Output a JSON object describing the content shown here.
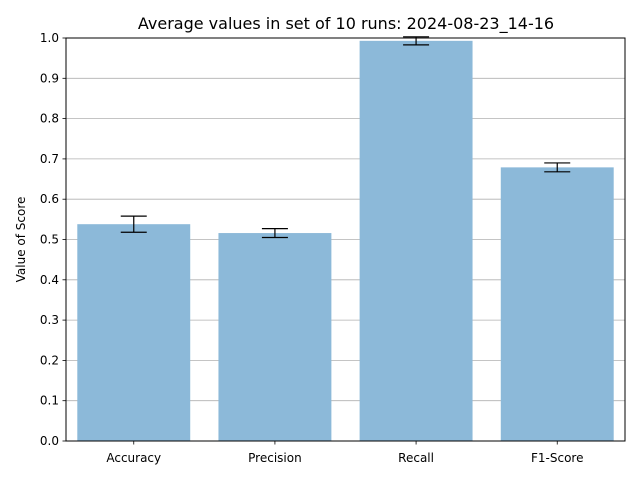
{
  "chart_data": {
    "type": "bar",
    "title": "Average values in set of 10 runs: 2024-08-23_14-16",
    "xlabel": "",
    "ylabel": "Value of Score",
    "ylim": [
      0,
      1.0
    ],
    "yticks": [
      "0.0",
      "0.1",
      "0.2",
      "0.3",
      "0.4",
      "0.5",
      "0.6",
      "0.7",
      "0.8",
      "0.9",
      "1.0"
    ],
    "categories": [
      "Accuracy",
      "Precision",
      "Recall",
      "F1-Score"
    ],
    "values": [
      0.538,
      0.516,
      0.993,
      0.679
    ],
    "errors": [
      0.02,
      0.011,
      0.01,
      0.011
    ],
    "grid": "y-major",
    "bar_color": "#8cb9d9",
    "error_color": "#000000",
    "grid_color": "#b0b0b0"
  }
}
